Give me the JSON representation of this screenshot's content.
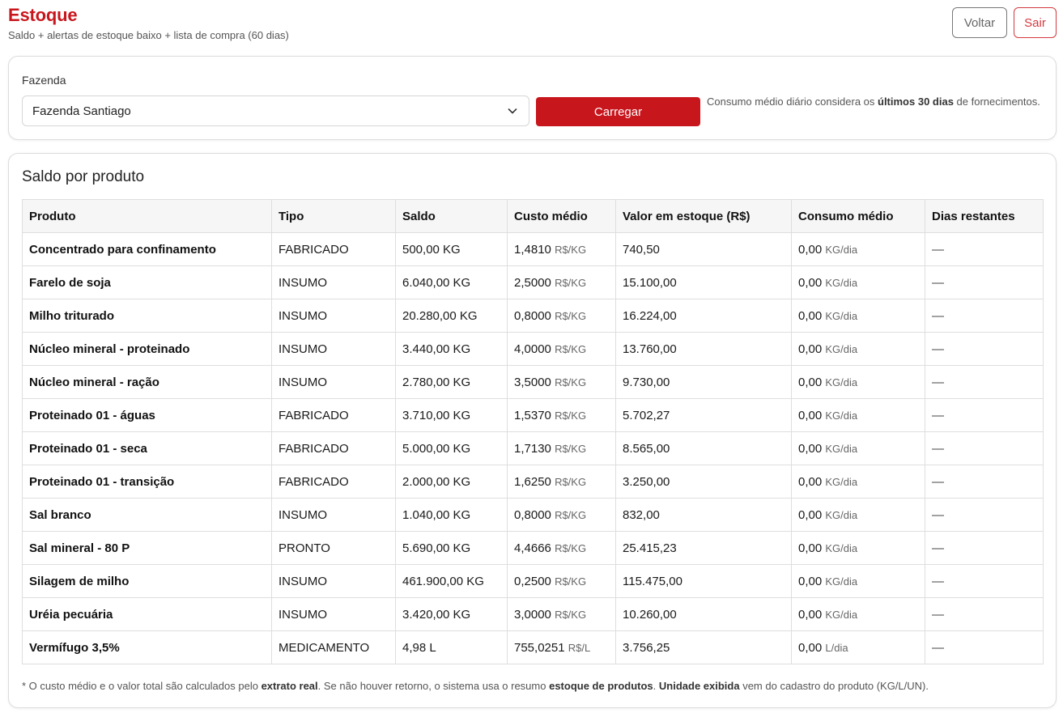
{
  "header": {
    "title": "Estoque",
    "subtitle": "Saldo + alertas de estoque baixo + lista de compra (60 dias)",
    "back_label": "Voltar",
    "logout_label": "Sair"
  },
  "filter": {
    "label": "Fazenda",
    "selected": "Fazenda Santiago",
    "load_label": "Carregar",
    "note_prefix": "Consumo médio diário considera os ",
    "note_bold": "últimos 30 dias",
    "note_suffix": " de fornecimentos."
  },
  "section": {
    "title": "Saldo por produto"
  },
  "table": {
    "columns": [
      "Produto",
      "Tipo",
      "Saldo",
      "Custo médio",
      "Valor em estoque (R$)",
      "Consumo médio",
      "Dias restantes"
    ],
    "rows": [
      {
        "produto": "Concentrado para confinamento",
        "tipo": "FABRICADO",
        "saldo": "500,00 KG",
        "custo": "1,4810",
        "custo_unit": "R$/KG",
        "valor": "740,50",
        "consumo": "0,00",
        "consumo_unit": "KG/dia",
        "dias": "—"
      },
      {
        "produto": "Farelo de soja",
        "tipo": "INSUMO",
        "saldo": "6.040,00 KG",
        "custo": "2,5000",
        "custo_unit": "R$/KG",
        "valor": "15.100,00",
        "consumo": "0,00",
        "consumo_unit": "KG/dia",
        "dias": "—"
      },
      {
        "produto": "Milho triturado",
        "tipo": "INSUMO",
        "saldo": "20.280,00 KG",
        "custo": "0,8000",
        "custo_unit": "R$/KG",
        "valor": "16.224,00",
        "consumo": "0,00",
        "consumo_unit": "KG/dia",
        "dias": "—"
      },
      {
        "produto": "Núcleo mineral - proteinado",
        "tipo": "INSUMO",
        "saldo": "3.440,00 KG",
        "custo": "4,0000",
        "custo_unit": "R$/KG",
        "valor": "13.760,00",
        "consumo": "0,00",
        "consumo_unit": "KG/dia",
        "dias": "—"
      },
      {
        "produto": "Núcleo mineral - ração",
        "tipo": "INSUMO",
        "saldo": "2.780,00 KG",
        "custo": "3,5000",
        "custo_unit": "R$/KG",
        "valor": "9.730,00",
        "consumo": "0,00",
        "consumo_unit": "KG/dia",
        "dias": "—"
      },
      {
        "produto": "Proteinado 01 - águas",
        "tipo": "FABRICADO",
        "saldo": "3.710,00 KG",
        "custo": "1,5370",
        "custo_unit": "R$/KG",
        "valor": "5.702,27",
        "consumo": "0,00",
        "consumo_unit": "KG/dia",
        "dias": "—"
      },
      {
        "produto": "Proteinado 01 - seca",
        "tipo": "FABRICADO",
        "saldo": "5.000,00 KG",
        "custo": "1,7130",
        "custo_unit": "R$/KG",
        "valor": "8.565,00",
        "consumo": "0,00",
        "consumo_unit": "KG/dia",
        "dias": "—"
      },
      {
        "produto": "Proteinado 01 - transição",
        "tipo": "FABRICADO",
        "saldo": "2.000,00 KG",
        "custo": "1,6250",
        "custo_unit": "R$/KG",
        "valor": "3.250,00",
        "consumo": "0,00",
        "consumo_unit": "KG/dia",
        "dias": "—"
      },
      {
        "produto": "Sal branco",
        "tipo": "INSUMO",
        "saldo": "1.040,00 KG",
        "custo": "0,8000",
        "custo_unit": "R$/KG",
        "valor": "832,00",
        "consumo": "0,00",
        "consumo_unit": "KG/dia",
        "dias": "—"
      },
      {
        "produto": "Sal mineral - 80 P",
        "tipo": "PRONTO",
        "saldo": "5.690,00 KG",
        "custo": "4,4666",
        "custo_unit": "R$/KG",
        "valor": "25.415,23",
        "consumo": "0,00",
        "consumo_unit": "KG/dia",
        "dias": "—"
      },
      {
        "produto": "Silagem de milho",
        "tipo": "INSUMO",
        "saldo": "461.900,00 KG",
        "custo": "0,2500",
        "custo_unit": "R$/KG",
        "valor": "115.475,00",
        "consumo": "0,00",
        "consumo_unit": "KG/dia",
        "dias": "—"
      },
      {
        "produto": "Uréia pecuária",
        "tipo": "INSUMO",
        "saldo": "3.420,00 KG",
        "custo": "3,0000",
        "custo_unit": "R$/KG",
        "valor": "10.260,00",
        "consumo": "0,00",
        "consumo_unit": "KG/dia",
        "dias": "—"
      },
      {
        "produto": "Vermífugo 3,5%",
        "tipo": "MEDICAMENTO",
        "saldo": "4,98 L",
        "custo": "755,0251",
        "custo_unit": "R$/L",
        "valor": "3.756,25",
        "consumo": "0,00",
        "consumo_unit": "L/dia",
        "dias": "—"
      }
    ]
  },
  "footnote": {
    "t1": "* O custo médio e o valor total são calculados pelo ",
    "b1": "extrato real",
    "t2": ". Se não houver retorno, o sistema usa o resumo ",
    "b2": "estoque de produtos",
    "t3": ". ",
    "b3": "Unidade exibida",
    "t4": " vem do cadastro do produto (KG/L/UN)."
  },
  "colors": {
    "brand": "#c8161d",
    "outline_danger": "#d33a3f"
  },
  "icons": {
    "select": "chevron-down-icon"
  }
}
